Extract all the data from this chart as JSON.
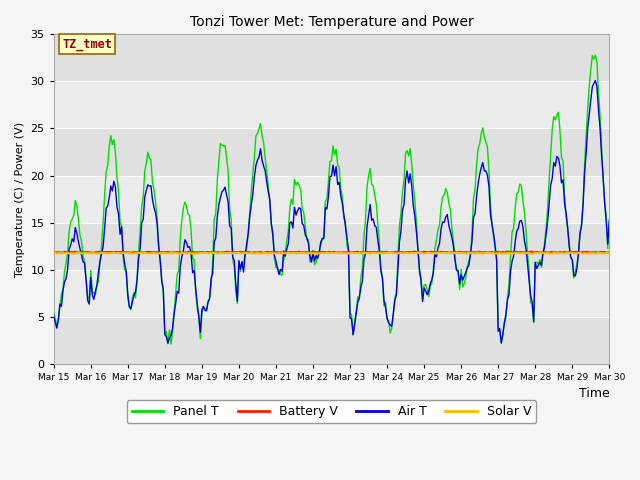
{
  "title": "Tonzi Tower Met: Temperature and Power",
  "xlabel": "Time",
  "ylabel": "Temperature (C) / Power (V)",
  "ylim": [
    0,
    35
  ],
  "background_color": "#f5f5f5",
  "plot_bg_color": "#e8e8e8",
  "plot_bg_color2": "#d0d0d0",
  "annotation_text": "TZ_tmet",
  "annotation_bg": "#ffffcc",
  "annotation_border": "#996600",
  "annotation_text_color": "#990000",
  "tick_labels": [
    "Mar 15",
    "Mar 16",
    "Mar 17",
    "Mar 18",
    "Mar 19",
    "Mar 20",
    "Mar 21",
    "Mar 22",
    "Mar 23",
    "Mar 24",
    "Mar 25",
    "Mar 26",
    "Mar 27",
    "Mar 28",
    "Mar 29",
    "Mar 30"
  ],
  "panel_t_color": "#00dd00",
  "battery_v_color": "#ff2200",
  "air_t_color": "#0000dd",
  "solar_v_color": "#ffbb00",
  "grid_color": "#ffffff",
  "battery_v_value": 11.85,
  "solar_v_value": 11.75,
  "n_days": 15,
  "hours_per_day": 24
}
